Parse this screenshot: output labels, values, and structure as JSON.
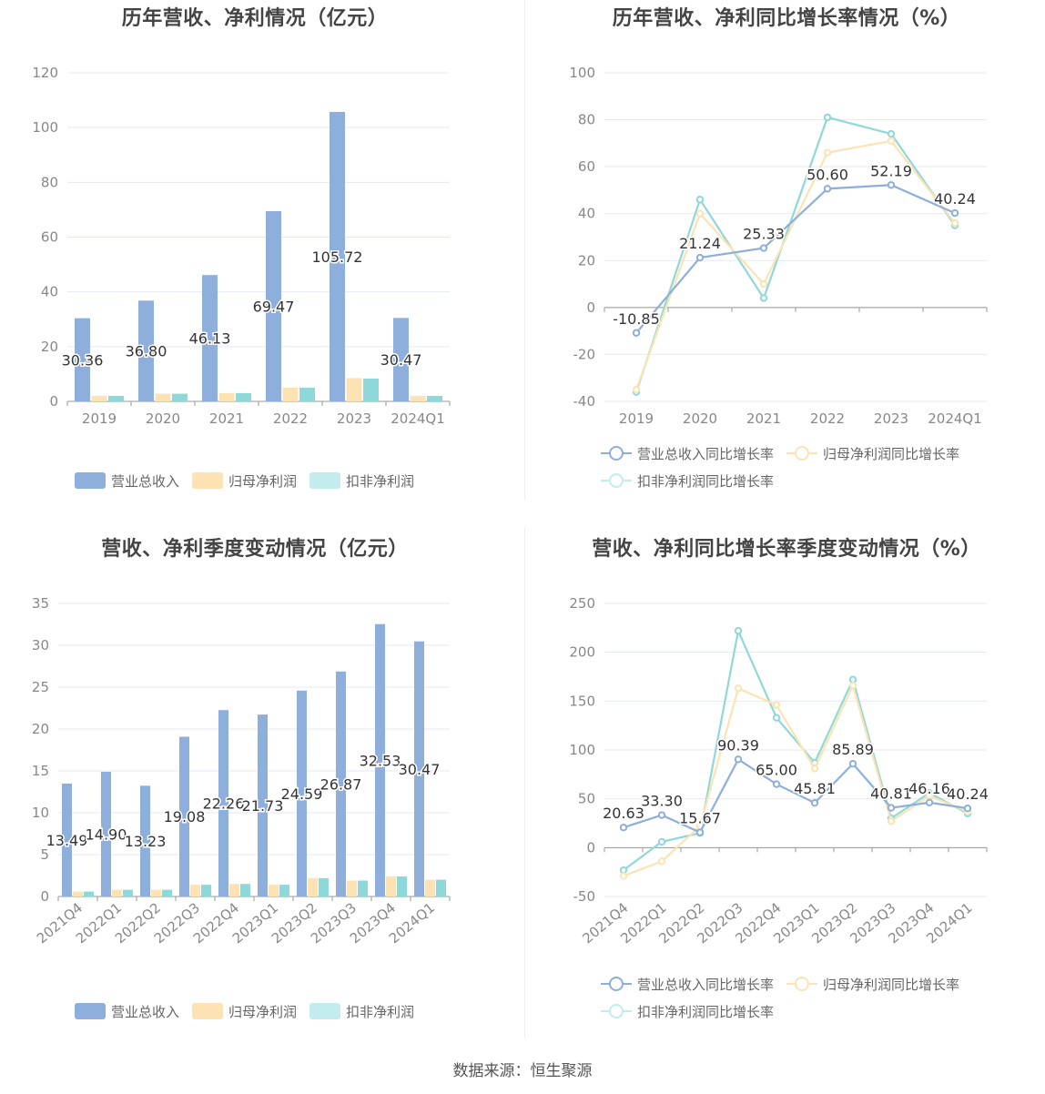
{
  "colors": {
    "revenue": "#8eaedc",
    "net_profit": "#fde3b3",
    "deducted": "#8fd8da"
  },
  "source": "数据来源：恒生聚源",
  "chart_data": [
    {
      "id": "annual-amount",
      "type": "bar",
      "title": "历年营收、净利情况（亿元）",
      "categories": [
        "2019",
        "2020",
        "2021",
        "2022",
        "2023",
        "2024Q1"
      ],
      "ylim": [
        0,
        120
      ],
      "yticks": [
        0,
        20,
        40,
        60,
        80,
        100,
        120
      ],
      "series": [
        {
          "name": "营业总收入",
          "color": "#8eaedc",
          "values": [
            30.36,
            36.8,
            46.13,
            69.47,
            105.72,
            30.47
          ],
          "labels": [
            "30.36",
            "36.80",
            "46.13",
            "69.47",
            "105.72",
            "30.47"
          ]
        },
        {
          "name": "归母净利润",
          "color": "#fde3b3",
          "values": [
            2.0,
            2.8,
            3.0,
            5.0,
            8.5,
            2.0
          ]
        },
        {
          "name": "扣非净利润",
          "color": "#8fd8da",
          "values": [
            2.0,
            2.8,
            3.0,
            5.0,
            8.3,
            2.0
          ]
        }
      ],
      "grid": true,
      "legend": "bottom"
    },
    {
      "id": "annual-growth",
      "type": "line",
      "title": "历年营收、净利同比增长率情况（%）",
      "categories": [
        "2019",
        "2020",
        "2021",
        "2022",
        "2023",
        "2024Q1"
      ],
      "ylim": [
        -40,
        100
      ],
      "yticks": [
        -40,
        -20,
        0,
        20,
        40,
        60,
        80,
        100
      ],
      "series": [
        {
          "name": "营业总收入同比增长率",
          "color": "#8eaedc",
          "values": [
            -10.85,
            21.24,
            25.33,
            50.6,
            52.19,
            40.24
          ],
          "labels": [
            "-10.85",
            "21.24",
            "25.33",
            "50.60",
            "52.19",
            "40.24"
          ]
        },
        {
          "name": "归母净利润同比增长率",
          "color": "#fde3b3",
          "values": [
            -35,
            40,
            10,
            66,
            71,
            36
          ]
        },
        {
          "name": "扣非净利润同比增长率",
          "color": "#8fd8da",
          "values": [
            -36,
            46,
            4,
            81,
            74,
            35
          ]
        }
      ],
      "grid": true,
      "legend": "bottom"
    },
    {
      "id": "quarterly-amount",
      "type": "bar",
      "title": "营收、净利季度变动情况（亿元）",
      "categories": [
        "2021Q4",
        "2022Q1",
        "2022Q2",
        "2022Q3",
        "2022Q4",
        "2023Q1",
        "2023Q2",
        "2023Q3",
        "2023Q4",
        "2024Q1"
      ],
      "ylim": [
        0,
        35
      ],
      "yticks": [
        0,
        5,
        10,
        15,
        20,
        25,
        30,
        35
      ],
      "series": [
        {
          "name": "营业总收入",
          "color": "#8eaedc",
          "values": [
            13.49,
            14.9,
            13.23,
            19.08,
            22.26,
            21.73,
            24.59,
            26.87,
            32.53,
            30.47
          ],
          "labels": [
            "13.49",
            "14.90",
            "13.23",
            "19.08",
            "22.26",
            "21.73",
            "24.59",
            "26.87",
            "32.53",
            "30.47"
          ]
        },
        {
          "name": "归母净利润",
          "color": "#fde3b3",
          "values": [
            0.6,
            0.8,
            0.8,
            1.4,
            1.5,
            1.4,
            2.2,
            1.9,
            2.4,
            2.0
          ]
        },
        {
          "name": "扣非净利润",
          "color": "#8fd8da",
          "values": [
            0.6,
            0.8,
            0.8,
            1.4,
            1.5,
            1.4,
            2.2,
            1.9,
            2.4,
            2.0
          ]
        }
      ],
      "grid": true,
      "legend": "bottom"
    },
    {
      "id": "quarterly-growth",
      "type": "line",
      "title": "营收、净利同比增长率季度变动情况（%）",
      "categories": [
        "2021Q4",
        "2022Q1",
        "2022Q2",
        "2022Q3",
        "2022Q4",
        "2023Q1",
        "2023Q2",
        "2023Q3",
        "2023Q4",
        "2024Q1"
      ],
      "ylim": [
        -50,
        250
      ],
      "yticks": [
        -50,
        0,
        50,
        100,
        150,
        200,
        250
      ],
      "series": [
        {
          "name": "营业总收入同比增长率",
          "color": "#8eaedc",
          "values": [
            20.63,
            33.3,
            15.67,
            90.39,
            65.0,
            45.81,
            85.89,
            40.81,
            46.16,
            40.24
          ],
          "labels": [
            "20.63",
            "33.30",
            "15.67",
            "90.39",
            "65.00",
            "45.81",
            "85.89",
            "40.81",
            "46.16",
            "40.24"
          ]
        },
        {
          "name": "归母净利润同比增长率",
          "color": "#fde3b3",
          "values": [
            -29,
            -14,
            22,
            163,
            146,
            81,
            166,
            27,
            53,
            37
          ]
        },
        {
          "name": "扣非净利润同比增长率",
          "color": "#8fd8da",
          "values": [
            -23,
            6,
            15,
            222,
            133,
            87,
            172,
            30,
            56,
            35
          ]
        }
      ],
      "grid": true,
      "legend": "bottom"
    }
  ]
}
